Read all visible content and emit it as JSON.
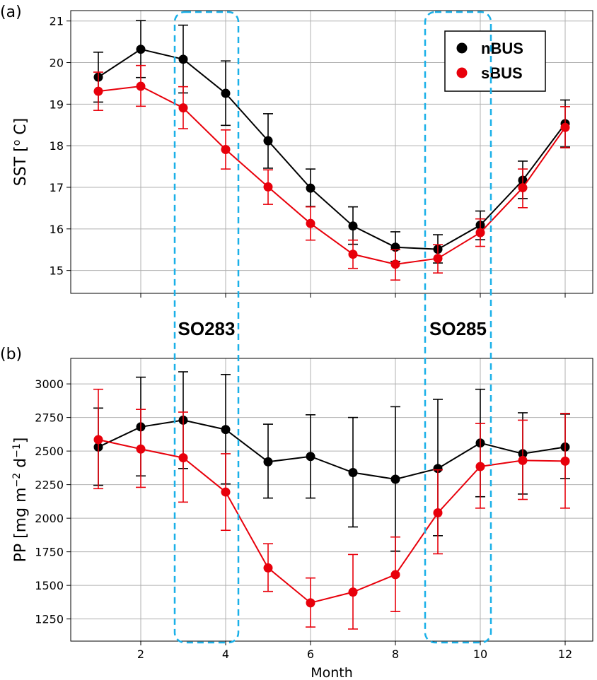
{
  "chart_data": [
    {
      "panel_label": "(a)",
      "type": "line",
      "xlabel": "",
      "ylabel": "SST [",
      "ylabel_sup": "o",
      "ylabel_tail": " C]",
      "xlim": [
        0.35,
        12.65
      ],
      "ylim": [
        14.45,
        21.25
      ],
      "xticks": [
        2,
        4,
        6,
        8,
        10,
        12
      ],
      "yticks": [
        15,
        16,
        17,
        18,
        19,
        20,
        21
      ],
      "tick_labels_x": false,
      "grid": true,
      "legend": {
        "placement": "top-right",
        "entries": [
          "nBUS",
          "sBUS"
        ]
      },
      "x": [
        1,
        2,
        3,
        4,
        5,
        6,
        7,
        8,
        9,
        10,
        11,
        12
      ],
      "series": [
        {
          "name": "nBUS",
          "color": "#000000",
          "values": [
            19.65,
            20.32,
            20.08,
            19.26,
            18.12,
            16.98,
            16.07,
            15.56,
            15.51,
            16.09,
            17.17,
            18.53
          ],
          "err_upper": [
            20.25,
            21.01,
            20.9,
            20.04,
            18.77,
            17.44,
            16.53,
            15.93,
            15.86,
            16.43,
            17.63,
            19.1
          ],
          "err_lower": [
            19.05,
            19.64,
            19.27,
            18.49,
            17.46,
            16.54,
            15.63,
            15.22,
            15.18,
            15.74,
            16.73,
            17.97
          ]
        },
        {
          "name": "sBUS",
          "color": "#e8000b",
          "values": [
            19.31,
            19.43,
            18.91,
            17.91,
            17.01,
            16.13,
            15.39,
            15.15,
            15.29,
            15.91,
            16.99,
            18.44
          ],
          "err_upper": [
            19.77,
            19.93,
            19.42,
            18.38,
            17.42,
            16.53,
            15.73,
            15.5,
            15.62,
            16.24,
            17.44,
            18.94
          ],
          "err_lower": [
            18.85,
            18.95,
            18.41,
            17.44,
            16.59,
            15.73,
            15.05,
            14.77,
            14.94,
            15.58,
            16.51,
            17.95
          ]
        }
      ]
    },
    {
      "panel_label": "(b)",
      "type": "line",
      "xlabel": "Month",
      "ylabel": "PP [mg m",
      "ylabel_sup1": "−2",
      "ylabel_mid": " d",
      "ylabel_sup2": "−1",
      "ylabel_tail": "]",
      "xlim": [
        0.35,
        12.65
      ],
      "ylim": [
        1085,
        3190
      ],
      "xticks": [
        2,
        4,
        6,
        8,
        10,
        12
      ],
      "yticks": [
        1250,
        1500,
        1750,
        2000,
        2250,
        2500,
        2750,
        3000
      ],
      "tick_labels_x": true,
      "grid": true,
      "x": [
        1,
        2,
        3,
        4,
        5,
        6,
        7,
        8,
        9,
        10,
        11,
        12
      ],
      "series": [
        {
          "name": "nBUS",
          "color": "#000000",
          "values": [
            2530,
            2680,
            2730,
            2660,
            2420,
            2460,
            2340,
            2290,
            2370,
            2560,
            2480,
            2530
          ],
          "err_upper": [
            2820,
            3050,
            3090,
            3070,
            2700,
            2770,
            2750,
            2830,
            2885,
            2960,
            2785,
            2775
          ],
          "err_lower": [
            2245,
            2315,
            2370,
            2255,
            2150,
            2150,
            1935,
            1755,
            1870,
            2160,
            2180,
            2295
          ]
        },
        {
          "name": "sBUS",
          "color": "#e8000b",
          "values": [
            2585,
            2515,
            2450,
            2195,
            1630,
            1370,
            1450,
            1580,
            2040,
            2385,
            2430,
            2425
          ],
          "err_upper": [
            2960,
            2810,
            2790,
            2480,
            1810,
            1555,
            1730,
            1860,
            2360,
            2705,
            2730,
            2780
          ],
          "err_lower": [
            2220,
            2230,
            2120,
            1910,
            1455,
            1190,
            1175,
            1305,
            1735,
            2075,
            2140,
            2075
          ]
        }
      ]
    }
  ],
  "campaigns": [
    {
      "label": "SO283",
      "month_from": 2.8,
      "month_to": 4.3
    },
    {
      "label": "SO285",
      "month_from": 8.7,
      "month_to": 10.25
    }
  ],
  "colors": {
    "highlight_box": "#1ab0e8",
    "grid": "#b0b0b0"
  }
}
